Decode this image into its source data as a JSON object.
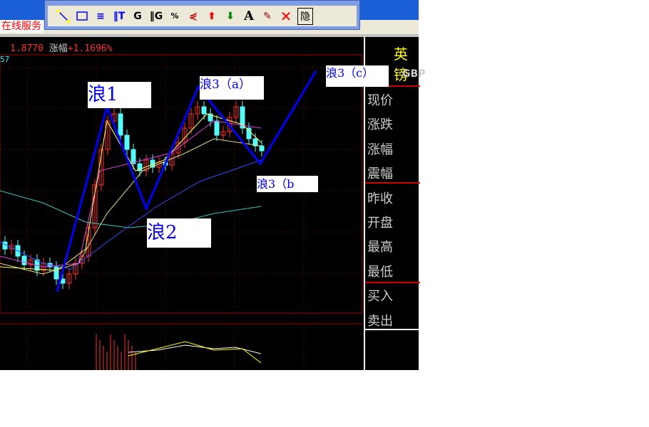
{
  "service_link": "在线服务",
  "toolbar": {
    "icons": [
      "line-tool-icon",
      "rectangle-tool-icon",
      "parallel-lines-icon",
      "text-lines-icon",
      "gann-g-icon",
      "gann-grid-icon",
      "percent-lines-icon",
      "fan-lines-icon",
      "up-arrow-icon",
      "down-arrow-icon",
      "text-a-icon",
      "eraser-icon",
      "delete-x-icon",
      "hide-icon"
    ],
    "hide_label": "隐",
    "text_label": "A"
  },
  "header": {
    "price": "1.8770",
    "change_label": "涨幅",
    "change_value": "+1.1696%",
    "cyan_value": "57"
  },
  "right_panel": {
    "title": "英镑",
    "code": "GBP",
    "labels": [
      "现价",
      "涨跌",
      "涨幅",
      "震幅",
      "昨收",
      "开盘",
      "最高",
      "最低",
      "买入",
      "卖出"
    ]
  },
  "annotations": {
    "w1": "浪1",
    "w2": "浪2",
    "w3a": "浪3（a）",
    "w3b": "浪3（b",
    "w3c": "浪3（c）"
  },
  "colors": {
    "up": "#ff3030",
    "down": "#54fcfc",
    "wave_line": "#0000ff",
    "grid": "#a00000"
  }
}
